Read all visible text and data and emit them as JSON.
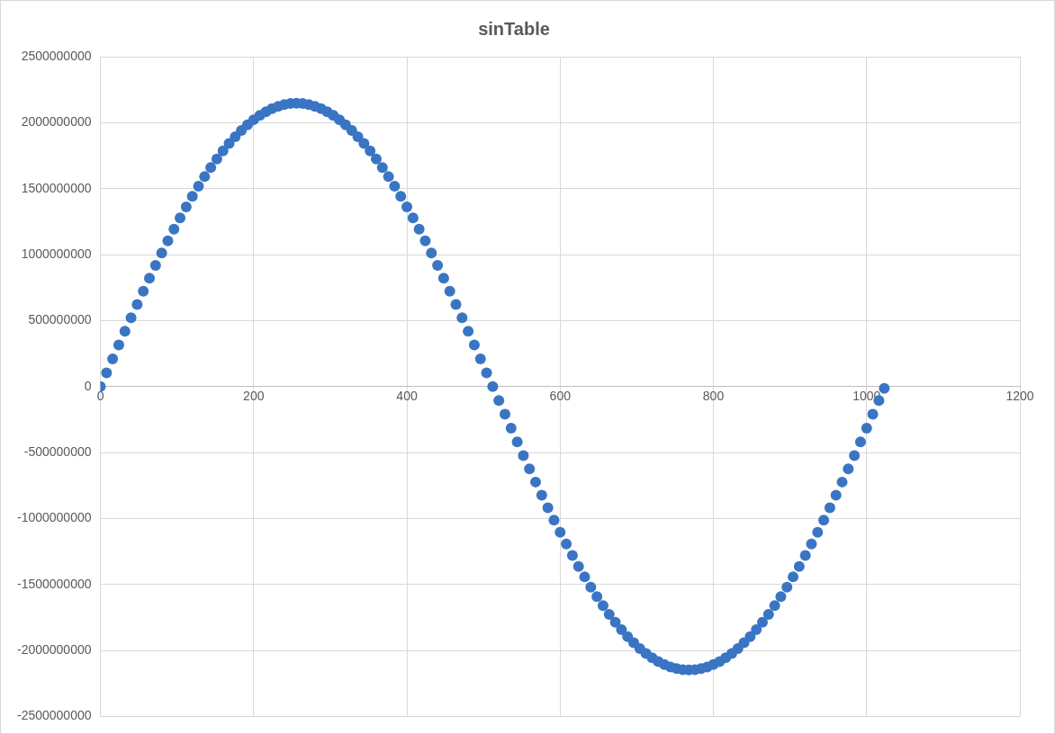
{
  "chart_data": {
    "type": "scatter",
    "title": "sinTable",
    "x": [
      0,
      8,
      16,
      24,
      32,
      40,
      48,
      56,
      64,
      72,
      80,
      88,
      96,
      104,
      112,
      120,
      128,
      136,
      144,
      152,
      160,
      168,
      176,
      184,
      192,
      200,
      208,
      216,
      224,
      232,
      240,
      248,
      256,
      264,
      272,
      280,
      288,
      296,
      304,
      312,
      320,
      328,
      336,
      344,
      352,
      360,
      368,
      376,
      384,
      392,
      400,
      408,
      416,
      424,
      432,
      440,
      448,
      456,
      464,
      472,
      480,
      488,
      496,
      504,
      512,
      520,
      528,
      536,
      544,
      552,
      560,
      568,
      576,
      584,
      592,
      600,
      608,
      616,
      624,
      632,
      640,
      648,
      656,
      664,
      672,
      680,
      688,
      696,
      704,
      712,
      720,
      728,
      736,
      744,
      752,
      760,
      768,
      776,
      784,
      792,
      800,
      808,
      816,
      824,
      832,
      840,
      848,
      856,
      864,
      872,
      880,
      888,
      896,
      904,
      912,
      920,
      928,
      936,
      944,
      952,
      960,
      968,
      976,
      984,
      992,
      1000,
      1008,
      1016,
      1023
    ],
    "series": [
      {
        "color": "#3a75c4",
        "values": [
          0,
          105000000,
          210000000,
          315000000,
          419000000,
          522000000,
          623000000,
          723000000,
          822000000,
          918000000,
          1012000000,
          1104000000,
          1193000000,
          1279000000,
          1362000000,
          1442000000,
          1519000000,
          1591000000,
          1660000000,
          1725000000,
          1786000000,
          1842000000,
          1894000000,
          1941000000,
          1984000000,
          2022000000,
          2055000000,
          2083000000,
          2106000000,
          2124000000,
          2137000000,
          2145000000,
          2147000000,
          2145000000,
          2137000000,
          2124000000,
          2106000000,
          2083000000,
          2055000000,
          2022000000,
          1984000000,
          1941000000,
          1894000000,
          1842000000,
          1786000000,
          1725000000,
          1660000000,
          1591000000,
          1519000000,
          1442000000,
          1362000000,
          1279000000,
          1193000000,
          1104000000,
          1012000000,
          918000000,
          822000000,
          723000000,
          623000000,
          522000000,
          419000000,
          315000000,
          210000000,
          105000000,
          0,
          -105000000,
          -210000000,
          -315000000,
          -419000000,
          -522000000,
          -623000000,
          -723000000,
          -822000000,
          -918000000,
          -1012000000,
          -1104000000,
          -1193000000,
          -1279000000,
          -1362000000,
          -1442000000,
          -1519000000,
          -1591000000,
          -1660000000,
          -1725000000,
          -1786000000,
          -1842000000,
          -1894000000,
          -1941000000,
          -1984000000,
          -2022000000,
          -2055000000,
          -2083000000,
          -2106000000,
          -2124000000,
          -2137000000,
          -2145000000,
          -2147000000,
          -2145000000,
          -2137000000,
          -2124000000,
          -2106000000,
          -2083000000,
          -2055000000,
          -2022000000,
          -1984000000,
          -1941000000,
          -1894000000,
          -1842000000,
          -1786000000,
          -1725000000,
          -1660000000,
          -1591000000,
          -1519000000,
          -1442000000,
          -1362000000,
          -1279000000,
          -1193000000,
          -1104000000,
          -1012000000,
          -918000000,
          -822000000,
          -723000000,
          -623000000,
          -522000000,
          -419000000,
          -315000000,
          -210000000,
          -105000000,
          -13000000
        ]
      }
    ],
    "xlim": [
      0,
      1200
    ],
    "xticks": [
      0,
      200,
      400,
      600,
      800,
      1000,
      1200
    ],
    "ylim": [
      -2500000000,
      2500000000
    ],
    "yticks": [
      -2500000000,
      -2000000000,
      -1500000000,
      -1000000000,
      -500000000,
      0,
      500000000,
      1000000000,
      1500000000,
      2000000000,
      2500000000
    ],
    "grid": true,
    "legend": false,
    "marker": "circle"
  }
}
